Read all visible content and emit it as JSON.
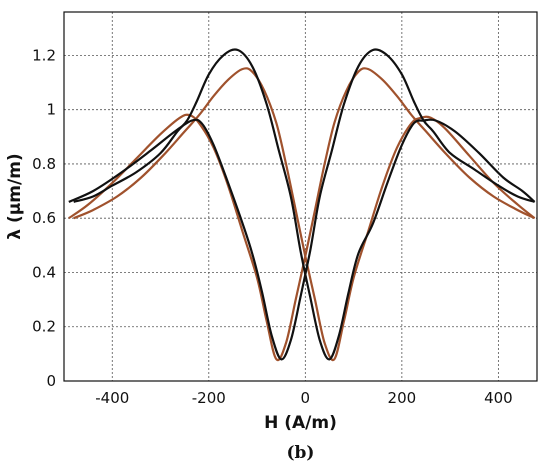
{
  "chart_data": {
    "type": "line",
    "title": "",
    "xlabel": "H (A/m)",
    "ylabel": "λ (μm/m)",
    "panel_label": "(b)",
    "xlim": [
      -500,
      480
    ],
    "ylim": [
      0,
      1.36
    ],
    "xticks": [
      -400,
      -200,
      0,
      200,
      400
    ],
    "yticks": [
      0,
      0.2,
      0.4,
      0.6,
      0.8,
      1,
      1.2
    ],
    "xtick_labels": [
      "-400",
      "-200",
      "0",
      "200",
      "400"
    ],
    "ytick_labels": [
      "0",
      "0.2",
      "0.4",
      "0.6",
      "0.8",
      "1",
      "1.2"
    ],
    "grid": true,
    "legend": "none",
    "series": [
      {
        "color": "#111111",
        "x": [
          -490,
          -440,
          -380,
          -320,
          -270,
          -235,
          -215,
          -190,
          -160,
          -130,
          -110,
          -90,
          -70,
          -50,
          -30,
          -10,
          10,
          30,
          55,
          80,
          110,
          140,
          170,
          200,
          225,
          245,
          265,
          300,
          350,
          400,
          440,
          475
        ],
        "y": [
          0.66,
          0.7,
          0.77,
          0.85,
          0.92,
          0.96,
          0.95,
          0.87,
          0.73,
          0.58,
          0.47,
          0.33,
          0.17,
          0.08,
          0.15,
          0.31,
          0.48,
          0.68,
          0.85,
          1.02,
          1.16,
          1.22,
          1.2,
          1.13,
          1.03,
          0.96,
          0.92,
          0.84,
          0.78,
          0.72,
          0.68,
          0.66
        ]
      },
      {
        "color": "#111111",
        "x": [
          475,
          450,
          410,
          360,
          310,
          270,
          245,
          225,
          200,
          170,
          140,
          110,
          90,
          70,
          50,
          30,
          10,
          -10,
          -30,
          -55,
          -80,
          -110,
          -140,
          -170,
          -200,
          -225,
          -245,
          -265,
          -300,
          -350,
          -400,
          -440,
          -480
        ],
        "y": [
          0.66,
          0.7,
          0.75,
          0.84,
          0.92,
          0.96,
          0.96,
          0.95,
          0.87,
          0.73,
          0.58,
          0.47,
          0.33,
          0.17,
          0.08,
          0.15,
          0.31,
          0.48,
          0.68,
          0.85,
          1.02,
          1.16,
          1.22,
          1.2,
          1.13,
          1.03,
          0.96,
          0.92,
          0.84,
          0.77,
          0.72,
          0.68,
          0.66
        ]
      },
      {
        "color": "#a0522d",
        "x": [
          -490,
          -450,
          -400,
          -350,
          -300,
          -260,
          -240,
          -220,
          -190,
          -160,
          -130,
          -100,
          -80,
          -60,
          -40,
          -20,
          0,
          20,
          40,
          60,
          85,
          110,
          130,
          160,
          190,
          220,
          250,
          290,
          340,
          390,
          440,
          475
        ],
        "y": [
          0.6,
          0.65,
          0.73,
          0.82,
          0.91,
          0.97,
          0.98,
          0.95,
          0.86,
          0.72,
          0.55,
          0.38,
          0.22,
          0.08,
          0.14,
          0.3,
          0.46,
          0.63,
          0.8,
          0.95,
          1.07,
          1.14,
          1.15,
          1.11,
          1.05,
          0.98,
          0.92,
          0.84,
          0.75,
          0.68,
          0.63,
          0.6
        ]
      },
      {
        "color": "#a0522d",
        "x": [
          475,
          440,
          390,
          340,
          290,
          260,
          240,
          220,
          190,
          160,
          130,
          100,
          80,
          60,
          40,
          20,
          0,
          -20,
          -40,
          -60,
          -85,
          -110,
          -130,
          -160,
          -190,
          -220,
          -250,
          -290,
          -340,
          -390,
          -440,
          -480
        ],
        "y": [
          0.6,
          0.65,
          0.73,
          0.83,
          0.93,
          0.97,
          0.97,
          0.95,
          0.86,
          0.72,
          0.55,
          0.38,
          0.22,
          0.08,
          0.14,
          0.3,
          0.46,
          0.63,
          0.8,
          0.95,
          1.07,
          1.14,
          1.15,
          1.11,
          1.05,
          0.98,
          0.92,
          0.84,
          0.75,
          0.68,
          0.63,
          0.6
        ]
      }
    ]
  }
}
